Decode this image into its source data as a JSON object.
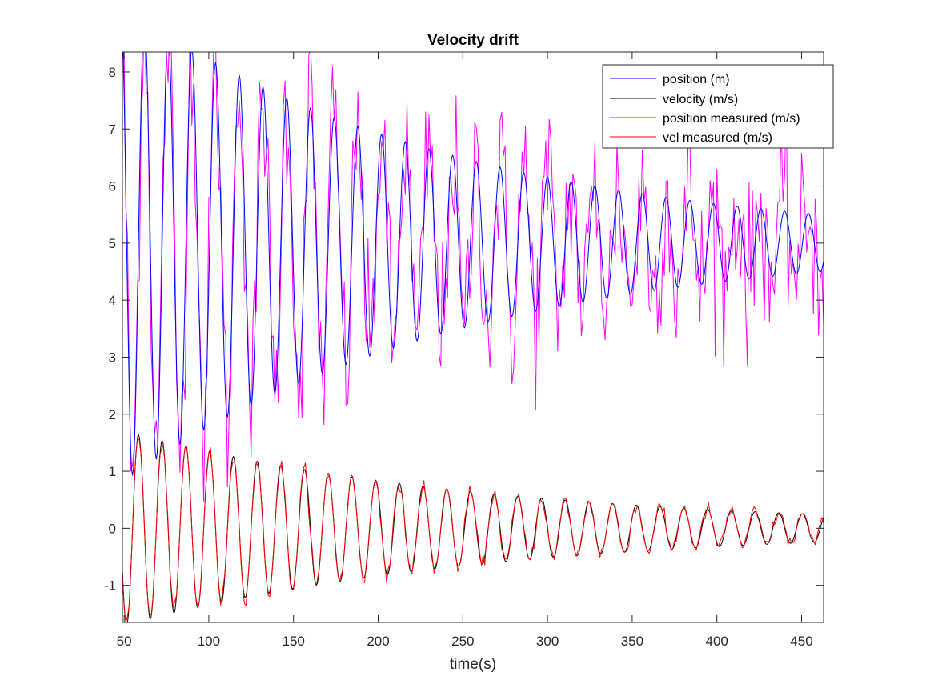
{
  "chart_data": {
    "type": "line",
    "title": "Velocity drift",
    "xlabel": "time(s)",
    "ylabel": "",
    "xlim": [
      49,
      463
    ],
    "ylim": [
      -1.65,
      8.35
    ],
    "xticks": [
      50,
      100,
      150,
      200,
      250,
      300,
      350,
      400,
      450
    ],
    "yticks": [
      -1,
      0,
      1,
      2,
      3,
      4,
      5,
      6,
      7,
      8
    ],
    "grid": false,
    "legend_position": "top-right",
    "series": [
      {
        "name": "position (m)",
        "color": "#0000ff",
        "model": {
          "kind": "damped-oscillation",
          "offset": 5.0,
          "amplitude_start": 4.2,
          "amplitude_end": 0.5,
          "period": 14.0,
          "phase_ref_x": 55.0,
          "sign": -1
        }
      },
      {
        "name": "velocity (m/s)",
        "color": "#000000",
        "model": {
          "kind": "damped-oscillation",
          "offset": 0.0,
          "amplitude_start": 1.72,
          "amplitude_end": 0.24,
          "period": 14.0,
          "phase_ref_x": 58.5,
          "sign": 1
        }
      },
      {
        "name": "position measured (m/s)",
        "color": "#ff00ff",
        "model": {
          "kind": "noisy-measurement-of",
          "base_series": 0,
          "noise_std": 0.75,
          "sample_step": 1.0
        }
      },
      {
        "name": "vel measured (m/s)",
        "color": "#ff0000",
        "model": {
          "kind": "noisy-measurement-of",
          "base_series": 1,
          "noise_std": 0.06,
          "sample_step": 1.0
        }
      }
    ]
  }
}
